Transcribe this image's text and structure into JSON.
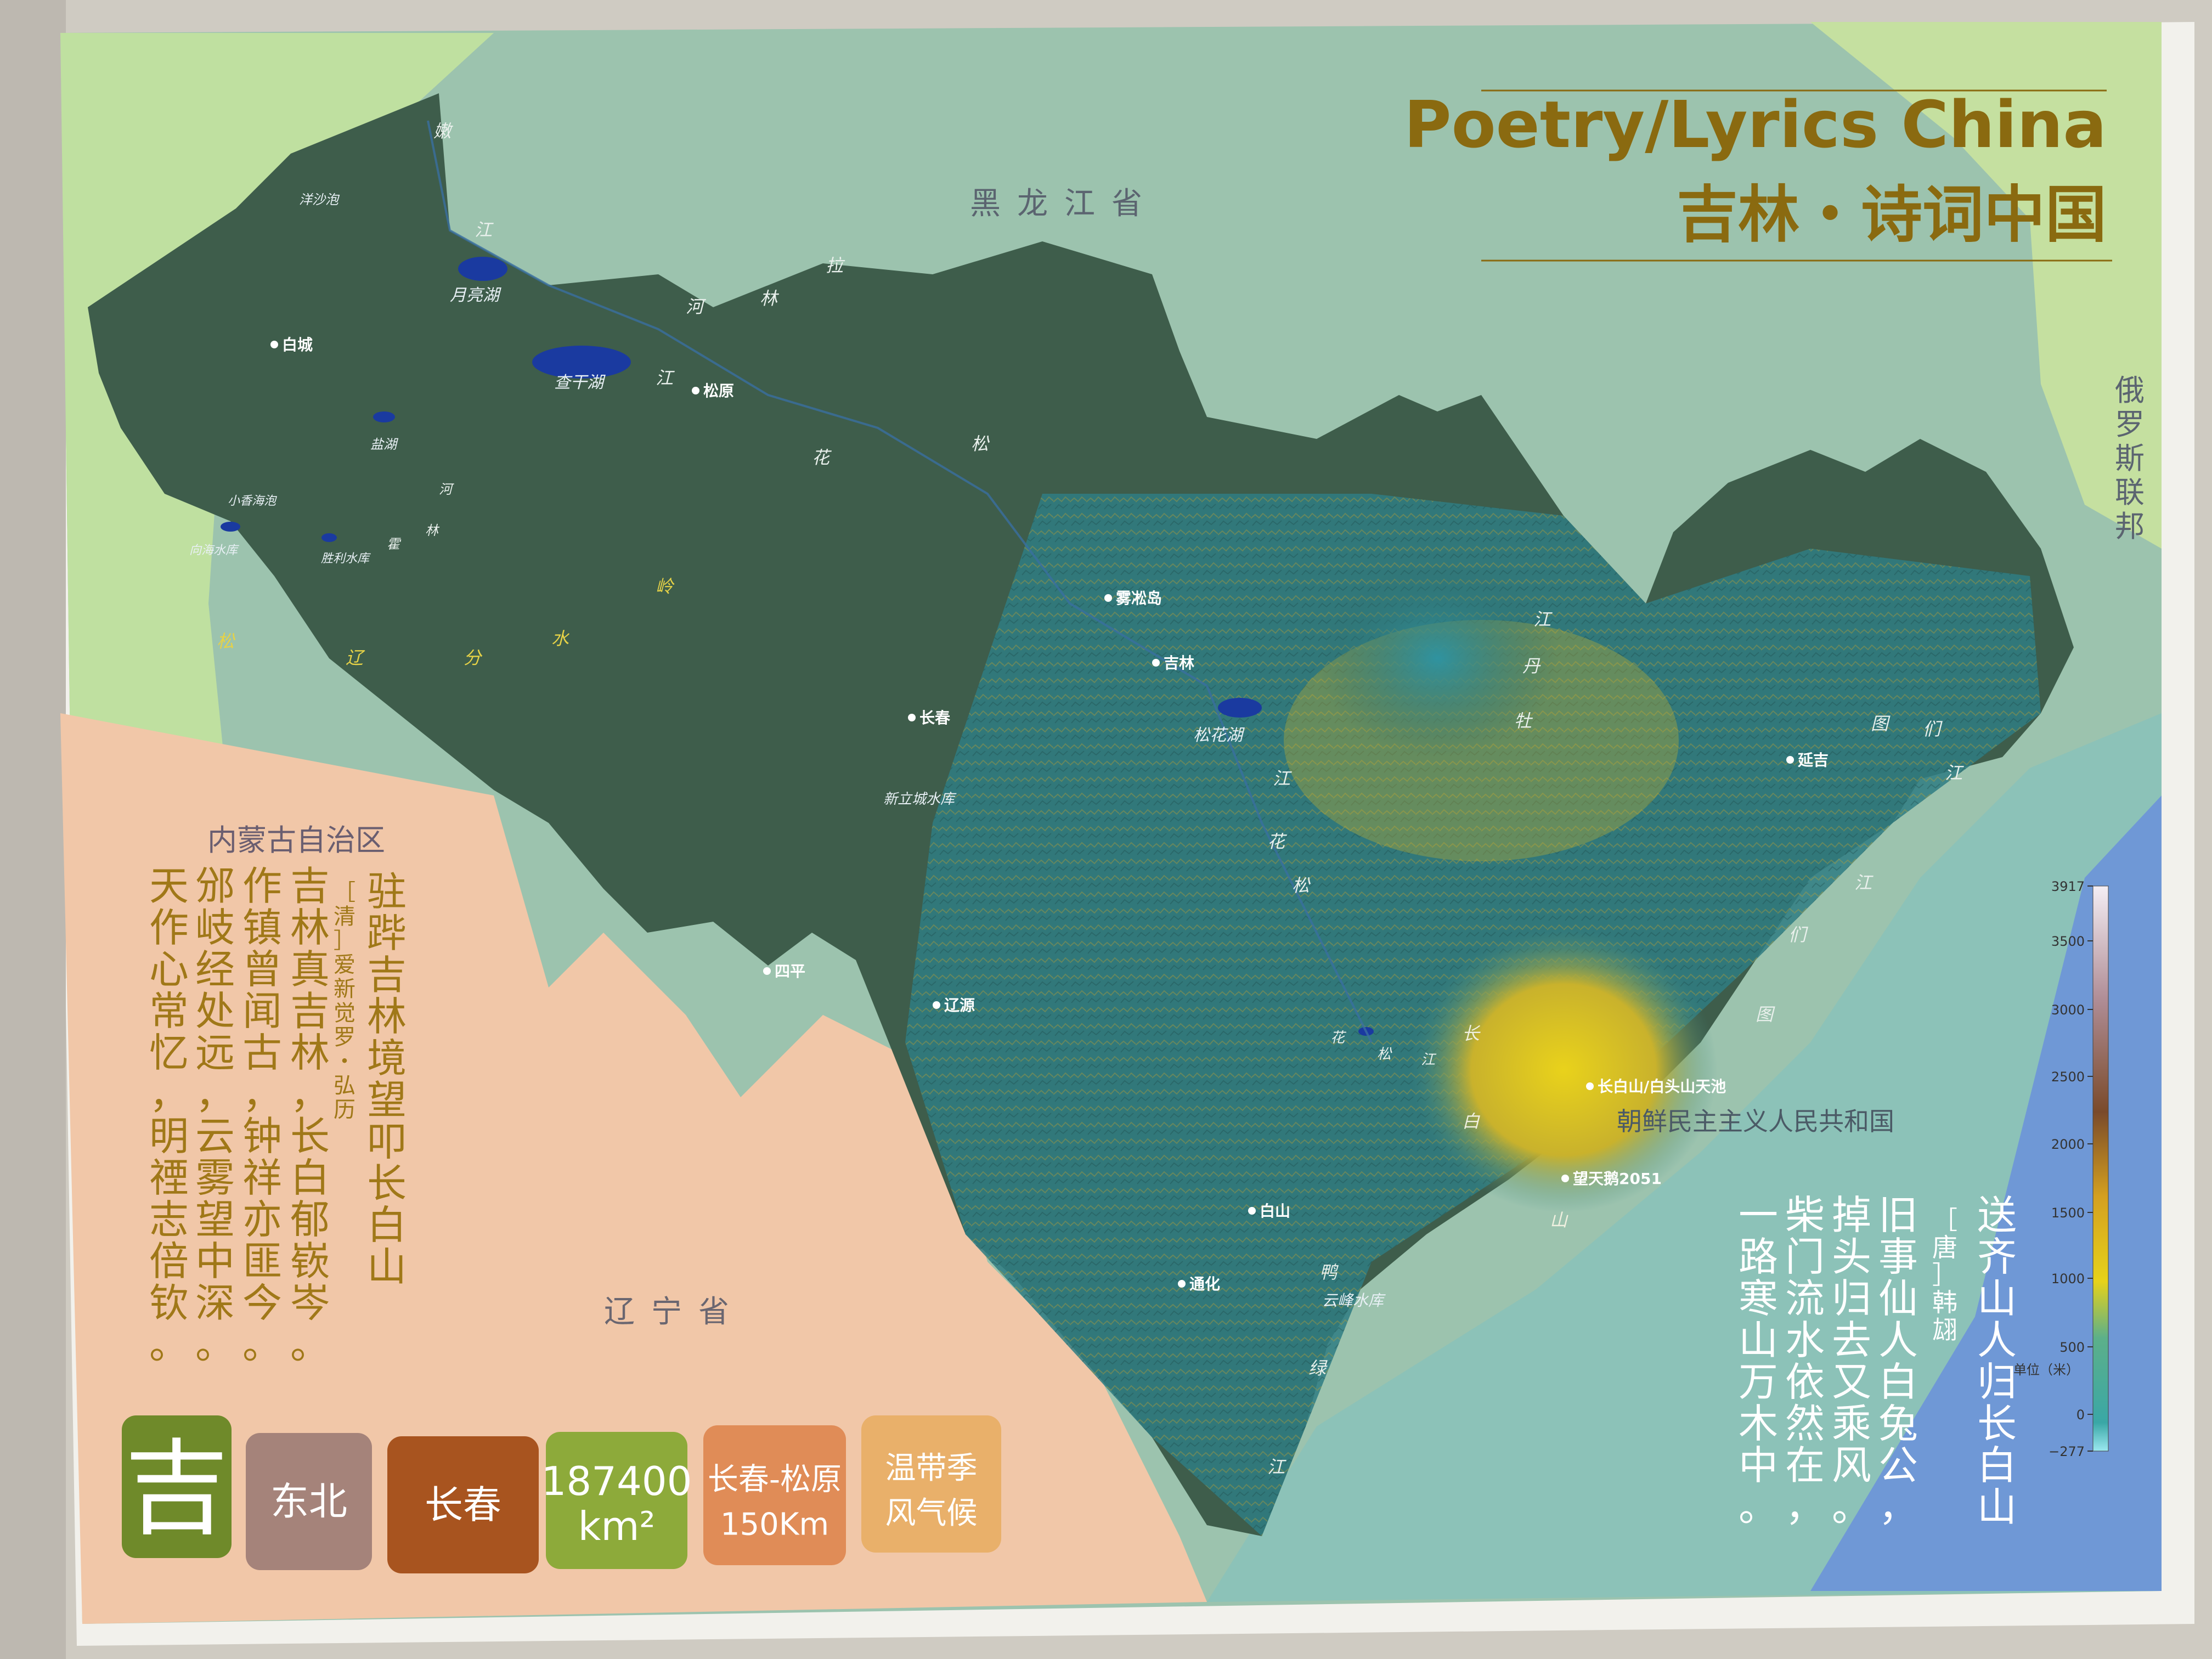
{
  "title": {
    "english": "Poetry/Lyrics China",
    "chinese": "吉林・诗词中国"
  },
  "regions": {
    "heilongjiang": "黑龙江省",
    "inner_mongolia": "内蒙古自治区",
    "liaoning": "辽宁省",
    "russia": "俄罗斯联邦",
    "north_korea": "朝鲜民主主义人民共和国"
  },
  "cities": [
    {
      "name": "白城"
    },
    {
      "name": "松原"
    },
    {
      "name": "雾凇岛"
    },
    {
      "name": "吉林"
    },
    {
      "name": "长春"
    },
    {
      "name": "四平"
    },
    {
      "name": "辽源"
    },
    {
      "name": "延吉"
    },
    {
      "name": "白山"
    },
    {
      "name": "通化"
    },
    {
      "name": "长白山/白头山天池"
    },
    {
      "name": "望天鹅2051"
    }
  ],
  "water_labels": {
    "chagan_lake": "查干湖",
    "yueliang_lake": "月亮湖",
    "yangsha_pao": "洋沙泡",
    "yanhu": "盐湖",
    "xiaoxiang_pao": "小香海泡",
    "xianghai_reservoir": "向海水库",
    "shengli_reservoir": "胜利水库",
    "songhua_lake": "松花湖",
    "xinlicheng_reservoir": "新立城水库",
    "yunfeng_reservoir": "云峰水库"
  },
  "map_characters": {
    "nen_river": [
      "嫩",
      "江"
    ],
    "lalin_river": [
      "拉",
      "林",
      "河"
    ],
    "songhua_river_1": [
      "花",
      "松",
      "江"
    ],
    "huolin_river": [
      "河",
      "林",
      "霍"
    ],
    "songliao_divide": [
      "松",
      "辽",
      "分",
      "水",
      "岭"
    ],
    "songhua_river_2": [
      "江",
      "花",
      "松"
    ],
    "mudan_river": [
      "江",
      "丹",
      "牡"
    ],
    "tumen_river": [
      "图",
      "们",
      "江",
      "江",
      "们",
      "图"
    ],
    "changbai_mountains": [
      "长",
      "白",
      "山"
    ],
    "yalu_river": [
      "鸭",
      "绿",
      "江"
    ],
    "songhua_upper": [
      "松",
      "花",
      "江"
    ]
  },
  "legend": {
    "ticks": [
      "3917",
      "3500",
      "3000",
      "2500",
      "2000",
      "1500",
      "1000",
      "500",
      "0",
      "−277"
    ],
    "unit": "单位（米）"
  },
  "poem_left": {
    "title": "驻跸吉林境望叩长白山",
    "author": "［清］爱新觉罗・弘历",
    "lines": [
      "吉林真吉林，长白郁嵚岑。",
      "作镇曾闻古，钟祥亦匪今。",
      "邠岐经处远，云雾望中深。",
      "天作心常忆，明禋志倍钦。"
    ]
  },
  "poem_right": {
    "title": "送齐山人归长白山",
    "author": "［唐］韩翃",
    "lines": [
      "旧事仙人白兔公，",
      "掉头归去又乘风。",
      "柴门流水依然在，",
      "一路寒山万木中。"
    ]
  },
  "info_tiles": [
    {
      "text": "吉",
      "color": "#6f8a2a"
    },
    {
      "text": "东北",
      "color": "#a5837a"
    },
    {
      "text": "长春",
      "color": "#a8541f"
    },
    {
      "text": "187400",
      "sub": "km²",
      "color": "#8daa3a"
    },
    {
      "text": "长春-松原",
      "sub": "150Km",
      "color": "#e08c57"
    },
    {
      "text": "温带季",
      "sub": "风气候",
      "color": "#e9b06a"
    }
  ],
  "colors": {
    "province_fill": "#3f5e4c",
    "heilongjiang_bg": "#9cbfa4",
    "inner_mongolia_bg": "#bfe0a0",
    "liaoning_bg": "#f1c7a8",
    "korea_bg": "#8cc0b8",
    "sea": "#6f98d6",
    "title_gold": "#8a6a10",
    "poem_gold": "#a07818"
  }
}
